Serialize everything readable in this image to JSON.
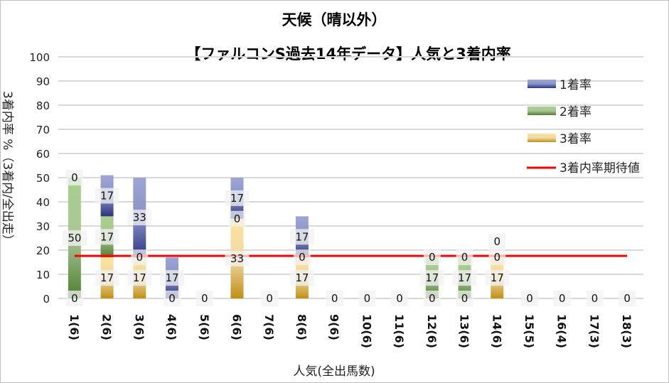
{
  "chart_data": {
    "type": "bar",
    "stacked": true,
    "title": "天候（晴以外）",
    "subtitle": "【ファルコンS過去14年データ】人気と3着内率",
    "xlabel": "人気(全出馬数)",
    "ylabel": "3着内率 %（3着内/全出走）",
    "ylim": [
      0,
      100
    ],
    "yticks": [
      0,
      10,
      20,
      30,
      40,
      50,
      60,
      70,
      80,
      90,
      100
    ],
    "grid": true,
    "legend_position": "right",
    "categories": [
      "1(6)",
      "2(6)",
      "3(6)",
      "4(6)",
      "5(6)",
      "6(6)",
      "7(6)",
      "8(6)",
      "9(6)",
      "10(6)",
      "11(6)",
      "12(6)",
      "13(6)",
      "14(6)",
      "15(5)",
      "16(4)",
      "17(3)",
      "18(3)"
    ],
    "series": [
      {
        "name": "3着率",
        "color": "#c8961a",
        "values": [
          0,
          17,
          17,
          0,
          0,
          33,
          0,
          17,
          0,
          0,
          0,
          0,
          0,
          17,
          0,
          0,
          0,
          0
        ],
        "labels": [
          0,
          17,
          17,
          0,
          0,
          33,
          0,
          17,
          0,
          0,
          0,
          0,
          0,
          17,
          0,
          0,
          0,
          0
        ]
      },
      {
        "name": "2着率",
        "color": "#5a8a3a",
        "values": [
          50,
          17,
          0,
          0,
          0,
          0,
          0,
          0,
          0,
          0,
          0,
          17,
          17,
          0,
          0,
          0,
          0,
          0
        ],
        "labels": [
          50,
          17,
          0,
          null,
          null,
          0,
          null,
          0,
          null,
          null,
          null,
          17,
          17,
          0,
          null,
          null,
          null,
          null
        ]
      },
      {
        "name": "1着率",
        "color": "#3a4a9a",
        "values": [
          0,
          17,
          33,
          17,
          0,
          17,
          0,
          17,
          0,
          0,
          0,
          0,
          0,
          0,
          0,
          0,
          0,
          0
        ],
        "labels": [
          0,
          17,
          33,
          17,
          null,
          17,
          null,
          17,
          null,
          null,
          null,
          0,
          0,
          0,
          null,
          null,
          null,
          null
        ]
      }
    ],
    "line": {
      "name": "3着内率期待値",
      "color": "#ff0000",
      "value": 17.6
    }
  }
}
